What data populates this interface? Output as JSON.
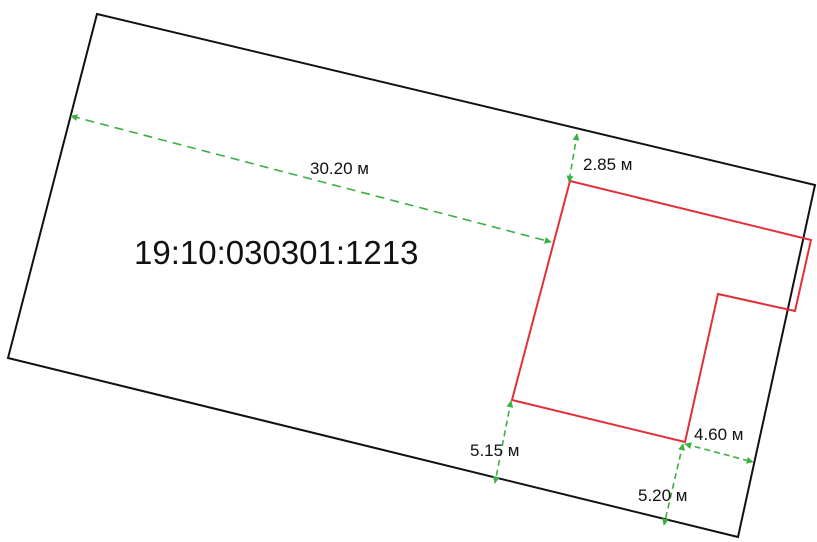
{
  "parcel": {
    "cadastral_number": "19:10:030301:1213"
  },
  "dimensions": {
    "setback_left": "30.20 м",
    "setback_top": "2.85 м",
    "setback_bottom_left": "5.15 м",
    "setback_right": "4.60 м",
    "setback_bottom_right": "5.20 м"
  },
  "colors": {
    "parcel_boundary": "#111111",
    "building_outline": "#e0303a",
    "dimension_line": "#3cb043",
    "background": "#ffffff"
  }
}
